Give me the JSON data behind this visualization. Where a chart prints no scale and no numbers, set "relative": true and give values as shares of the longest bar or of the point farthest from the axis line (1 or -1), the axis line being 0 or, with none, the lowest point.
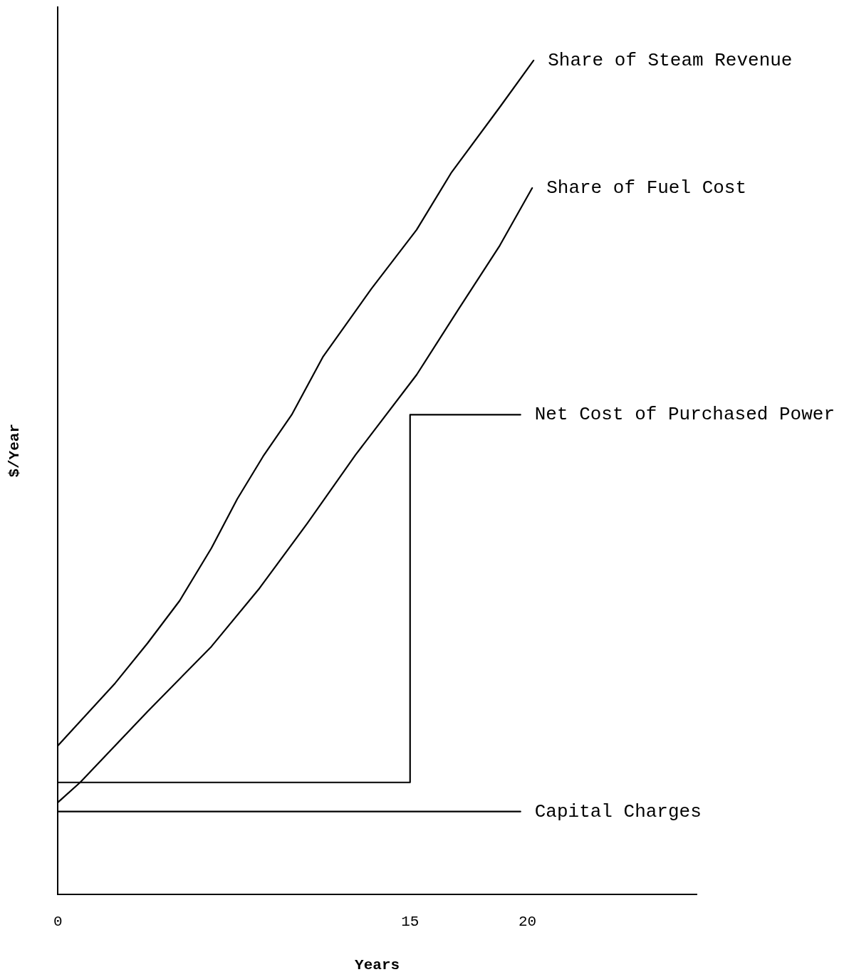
{
  "chart_data": {
    "type": "line",
    "xlabel": "Years",
    "ylabel": "$/Year",
    "relative": true,
    "xlim": [
      0,
      27.2
    ],
    "xticks": [
      0,
      15,
      20
    ],
    "grid": false,
    "legend": false,
    "marker": "none",
    "line_style": "solid",
    "series": [
      {
        "name": "Share of Steam Revenue",
        "color": "#000000",
        "x": [
          0,
          2.44,
          3.82,
          5.19,
          6.54,
          7.64,
          8.74,
          9.96,
          11.3,
          13.35,
          15.28,
          16.77,
          18.82,
          20.26
        ],
        "values": [
          0.178,
          0.253,
          0.301,
          0.352,
          0.415,
          0.474,
          0.525,
          0.575,
          0.645,
          0.726,
          0.797,
          0.866,
          0.944,
          1.0
        ]
      },
      {
        "name": "Share of Fuel Cost",
        "color": "#000000",
        "x": [
          0,
          0.95,
          3.82,
          6.54,
          8.59,
          10.63,
          12.68,
          15.28,
          17.05,
          18.82,
          20.2
        ],
        "values": [
          0.11,
          0.134,
          0.219,
          0.297,
          0.367,
          0.445,
          0.527,
          0.623,
          0.701,
          0.778,
          0.847
        ]
      },
      {
        "name": "Net Cost of Purchased Power",
        "type": "step",
        "color": "#000000",
        "x": [
          0,
          15,
          19.7
        ],
        "values": [
          0.134,
          0.575,
          0.575
        ]
      },
      {
        "name": "Capital Charges",
        "color": "#000000",
        "x": [
          0,
          19.7
        ],
        "values": [
          0.099,
          0.099
        ]
      }
    ]
  }
}
